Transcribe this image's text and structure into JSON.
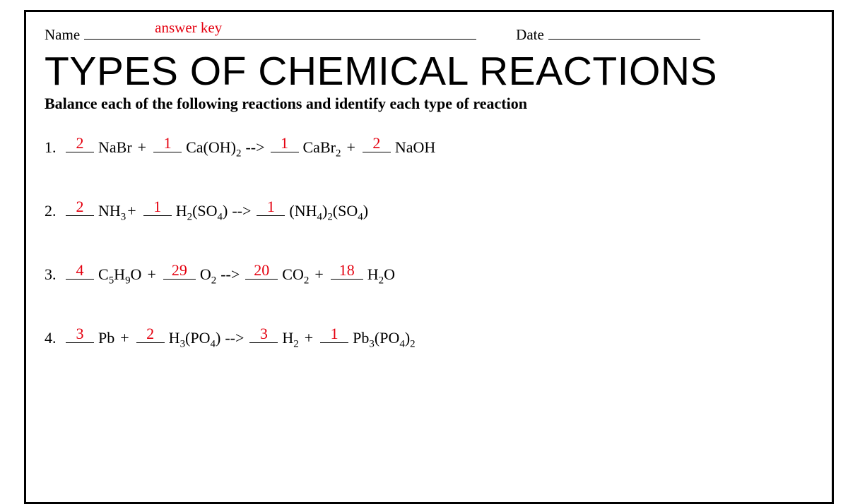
{
  "labels": {
    "name": "Name",
    "date": "Date",
    "answer_key": "answer key"
  },
  "title": "TYPES OF CHEMICAL REACTIONS",
  "instructions": "Balance each of the following reactions and identify each type of reaction",
  "colors": {
    "answer_red": "#e4000f",
    "text": "#000000",
    "background": "#ffffff"
  },
  "typography": {
    "title_fontsize": 57,
    "title_weight": 300,
    "body_fontsize": 22,
    "header_fontsize": 21
  },
  "problems": [
    {
      "n": "1.",
      "terms": [
        {
          "coef": "2",
          "formula_html": "NaBr"
        },
        {
          "op": "+"
        },
        {
          "coef": "1",
          "formula_html": "Ca(OH)<sub>2</sub>"
        },
        {
          "op": "-->"
        },
        {
          "coef": "1",
          "formula_html": "CaBr<sub>2</sub>"
        },
        {
          "op": "+"
        },
        {
          "coef": "2",
          "formula_html": "NaOH"
        }
      ]
    },
    {
      "n": "2.",
      "terms": [
        {
          "coef": "2",
          "formula_html": "NH<sub>3</sub>",
          "tight_after": true
        },
        {
          "op": "+"
        },
        {
          "coef": "1",
          "formula_html": "H<sub>2</sub>(SO<sub>4</sub>)"
        },
        {
          "op": "-->"
        },
        {
          "coef": "1",
          "formula_html": "(NH<sub>4</sub>)<sub>2</sub>(SO<sub>4</sub>)"
        }
      ]
    },
    {
      "n": "3.",
      "terms": [
        {
          "coef": "4",
          "formula_html": "C<sub>5</sub>H<sub>9</sub>O"
        },
        {
          "op": "+"
        },
        {
          "coef": "29",
          "wide": true,
          "formula_html": "O<sub>2</sub>"
        },
        {
          "op": "-->"
        },
        {
          "coef": "20",
          "wide": true,
          "formula_html": "CO<sub>2</sub>"
        },
        {
          "op": "+"
        },
        {
          "coef": "18",
          "wide": true,
          "formula_html": "H<sub>2</sub>O"
        }
      ]
    },
    {
      "n": "4.",
      "terms": [
        {
          "coef": "3",
          "formula_html": "Pb"
        },
        {
          "op": "+"
        },
        {
          "coef": "2",
          "formula_html": "H<sub>3</sub>(PO<sub>4</sub>)"
        },
        {
          "op": "-->"
        },
        {
          "coef": "3",
          "formula_html": "H<sub>2</sub>"
        },
        {
          "op": "+"
        },
        {
          "coef": "1",
          "formula_html": "Pb<sub>3</sub>(PO<sub>4</sub>)<sub>2</sub>"
        }
      ]
    }
  ]
}
